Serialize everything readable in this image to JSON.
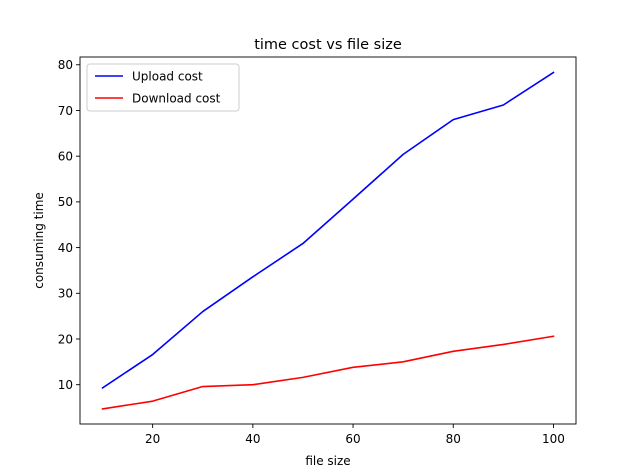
{
  "chart_data": {
    "type": "line",
    "title": "time cost vs file size",
    "xlabel": "file size",
    "ylabel": "consuming time",
    "x": [
      10,
      20,
      30,
      40,
      50,
      60,
      70,
      80,
      90,
      100
    ],
    "series": [
      {
        "name": "Upload cost",
        "color": "#0000ff",
        "values": [
          9.3,
          16.6,
          26.0,
          33.6,
          40.9,
          50.6,
          60.4,
          68.0,
          71.2,
          78.3
        ]
      },
      {
        "name": "Download cost",
        "color": "#ff0000",
        "values": [
          4.7,
          6.4,
          9.6,
          10.0,
          11.6,
          13.8,
          15.0,
          17.3,
          18.8,
          20.6
        ]
      }
    ],
    "xticks": [
      20,
      40,
      60,
      80,
      100
    ],
    "yticks": [
      10,
      20,
      30,
      40,
      50,
      60,
      70,
      80
    ],
    "xlim": [
      5.5,
      104.5
    ],
    "ylim": [
      1.4,
      81.7
    ],
    "grid": false,
    "legend_position": "top-left"
  }
}
